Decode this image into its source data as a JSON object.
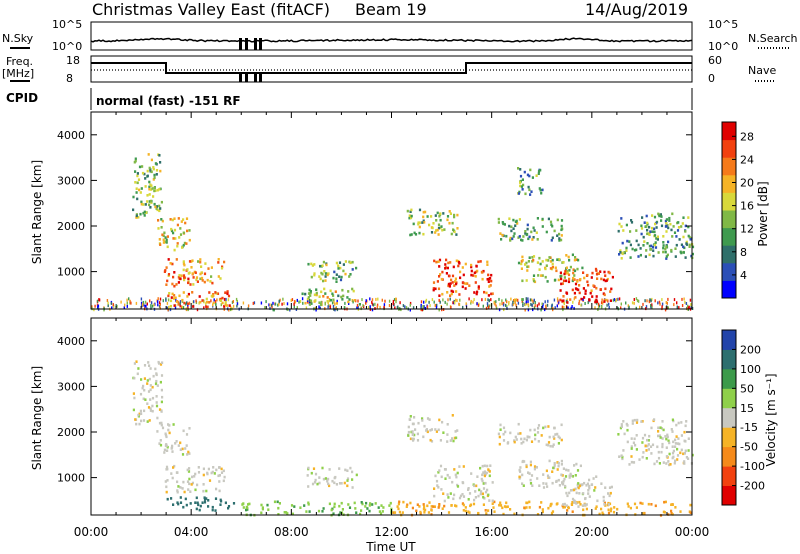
{
  "header": {
    "station": "Christmas Valley East (fitACF)",
    "beam": "Beam 19",
    "date": "14/Aug/2019"
  },
  "strips": {
    "nsky_label": "N.Sky",
    "nsearch_label": "N.Search",
    "freq_label": "Freq.",
    "freq_unit": "[MHz]",
    "nave_label": "Nave",
    "cpid_label": "CPID",
    "cpid_value": "normal (fast) -151 RF",
    "noise_left_ticks": [
      "10^5",
      "10^0"
    ],
    "noise_right_ticks": [
      "10^5",
      "10^0"
    ],
    "freq_ticks": [
      "18",
      "8"
    ],
    "nave_ticks": [
      "60",
      "0"
    ]
  },
  "panels": {
    "ylabel": "Slant Range [km]",
    "xlabel": "Time UT",
    "power_label": "Power [dB]",
    "velocity_label": "Velocity [m s⁻¹]"
  },
  "chart_data": [
    {
      "type": "heatmap",
      "title": "Power",
      "xlabel": "Time UT",
      "ylabel": "Slant Range [km]",
      "x_ticks": [
        "00:00",
        "04:00",
        "08:00",
        "12:00",
        "16:00",
        "20:00",
        "00:00"
      ],
      "y_ticks": [
        1000,
        2000,
        3000,
        4000
      ],
      "ylim": [
        180,
        4500
      ],
      "xlim_hours": [
        0,
        24
      ],
      "colorbar": {
        "label": "Power [dB]",
        "ticks": [
          4,
          8,
          12,
          16,
          20,
          24,
          28
        ],
        "colors": [
          "#0000ff",
          "#2b4fb7",
          "#2f6f6a",
          "#3f9a4f",
          "#80b846",
          "#d8d83a",
          "#f5b326",
          "#f57a1a",
          "#f2410f",
          "#e00000"
        ]
      },
      "patches": [
        {
          "t_start": 1.6,
          "t_end": 2.8,
          "r_start": 2200,
          "r_end": 3600,
          "level": 0.45
        },
        {
          "t_start": 2.6,
          "t_end": 3.9,
          "r_start": 1500,
          "r_end": 2200,
          "level": 0.55
        },
        {
          "t_start": 2.9,
          "t_end": 5.3,
          "r_start": 700,
          "r_end": 1300,
          "level": 0.7
        },
        {
          "t_start": 3.0,
          "t_end": 5.7,
          "r_start": 250,
          "r_end": 600,
          "level": 0.75
        },
        {
          "t_start": 8.6,
          "t_end": 10.6,
          "r_start": 800,
          "r_end": 1250,
          "level": 0.4
        },
        {
          "t_start": 8.4,
          "t_end": 10.9,
          "r_start": 300,
          "r_end": 650,
          "level": 0.5
        },
        {
          "t_start": 12.6,
          "t_end": 14.6,
          "r_start": 1800,
          "r_end": 2400,
          "level": 0.45
        },
        {
          "t_start": 13.6,
          "t_end": 16.0,
          "r_start": 500,
          "r_end": 1300,
          "level": 0.85
        },
        {
          "t_start": 16.2,
          "t_end": 18.8,
          "r_start": 1700,
          "r_end": 2200,
          "level": 0.4
        },
        {
          "t_start": 17.0,
          "t_end": 19.6,
          "r_start": 800,
          "r_end": 1400,
          "level": 0.55
        },
        {
          "t_start": 18.7,
          "t_end": 20.8,
          "r_start": 350,
          "r_end": 1100,
          "level": 0.9
        },
        {
          "t_start": 21.0,
          "t_end": 24.0,
          "r_start": 1300,
          "r_end": 2300,
          "level": 0.35
        },
        {
          "t_start": 17.0,
          "t_end": 18.0,
          "r_start": 2700,
          "r_end": 3300,
          "level": 0.35
        }
      ]
    },
    {
      "type": "heatmap",
      "title": "Velocity",
      "xlabel": "Time UT",
      "ylabel": "Slant Range [km]",
      "x_ticks": [
        "00:00",
        "04:00",
        "08:00",
        "12:00",
        "16:00",
        "20:00",
        "00:00"
      ],
      "y_ticks": [
        1000,
        2000,
        3000,
        4000
      ],
      "ylim": [
        180,
        4500
      ],
      "xlim_hours": [
        0,
        24
      ],
      "colorbar": {
        "label": "Velocity [m s⁻¹]",
        "ticks": [
          200,
          100,
          50,
          15,
          -15,
          -50,
          -100,
          -200
        ],
        "colors": [
          "#2244aa",
          "#2d6f6f",
          "#3c9a4a",
          "#8fd04a",
          "#c8c8c0",
          "#f5b326",
          "#f58a1a",
          "#f2410f",
          "#e00000"
        ]
      },
      "patches": [
        {
          "t_start": 1.6,
          "t_end": 2.8,
          "r_start": 2200,
          "r_end": 3600,
          "velocity": 0
        },
        {
          "t_start": 2.6,
          "t_end": 3.9,
          "r_start": 1500,
          "r_end": 2200,
          "velocity": 0
        },
        {
          "t_start": 2.9,
          "t_end": 5.3,
          "r_start": 700,
          "r_end": 1300,
          "velocity": 0
        },
        {
          "t_start": 3.0,
          "t_end": 5.7,
          "r_start": 300,
          "r_end": 600,
          "velocity": 150
        },
        {
          "t_start": 6.0,
          "t_end": 12.0,
          "r_start": 200,
          "r_end": 500,
          "velocity": 40
        },
        {
          "t_start": 12.0,
          "t_end": 24.0,
          "r_start": 200,
          "r_end": 500,
          "velocity": -40
        },
        {
          "t_start": 8.6,
          "t_end": 10.6,
          "r_start": 800,
          "r_end": 1250,
          "velocity": 0
        },
        {
          "t_start": 12.6,
          "t_end": 14.6,
          "r_start": 1800,
          "r_end": 2400,
          "velocity": 0
        },
        {
          "t_start": 13.6,
          "t_end": 16.0,
          "r_start": 500,
          "r_end": 1300,
          "velocity": 0
        },
        {
          "t_start": 16.2,
          "t_end": 18.8,
          "r_start": 1700,
          "r_end": 2200,
          "velocity": 0
        },
        {
          "t_start": 17.0,
          "t_end": 19.6,
          "r_start": 800,
          "r_end": 1400,
          "velocity": 0
        },
        {
          "t_start": 18.7,
          "t_end": 20.8,
          "r_start": 350,
          "r_end": 1100,
          "velocity": 0
        },
        {
          "t_start": 21.0,
          "t_end": 24.0,
          "r_start": 1300,
          "r_end": 2300,
          "velocity": 0
        }
      ]
    }
  ]
}
